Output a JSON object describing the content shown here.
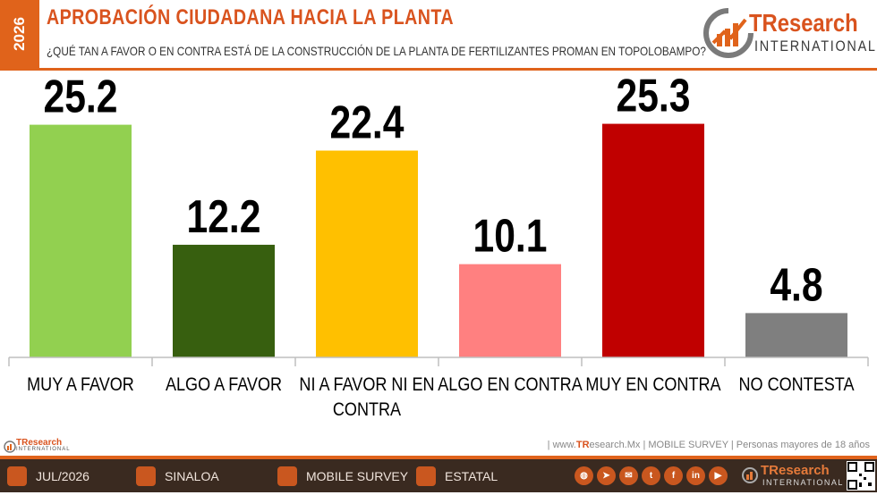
{
  "header": {
    "year": "2026",
    "title": "APROBACIÓN CIUDADANA HACIA LA PLANTA",
    "subtitle": "¿QUÉ TAN A FAVOR O EN CONTRA ESTÁ DE LA CONSTRUCCIÓN DE LA PLANTA DE FERTILIZANTES PROMAN EN TOPOLOBAMPO?",
    "logo_brand": "TResearch",
    "logo_sub": "INTERNATIONAL"
  },
  "chart_data": {
    "type": "bar",
    "categories": [
      "MUY A FAVOR",
      "ALGO A FAVOR",
      "NI A FAVOR NI EN CONTRA",
      "ALGO EN CONTRA",
      "MUY EN CONTRA",
      "NO CONTESTA"
    ],
    "category_lines": [
      [
        "MUY A FAVOR"
      ],
      [
        "ALGO A FAVOR"
      ],
      [
        "NI A FAVOR NI EN",
        "CONTRA"
      ],
      [
        "ALGO EN CONTRA"
      ],
      [
        "MUY EN CONTRA"
      ],
      [
        "NO CONTESTA"
      ]
    ],
    "values": [
      25.2,
      12.2,
      22.4,
      10.1,
      25.3,
      4.8
    ],
    "value_labels": [
      "25.2",
      "12.2",
      "22.4",
      "10.1",
      "25.3",
      "4.8"
    ],
    "colors": [
      "#92d050",
      "#375f0f",
      "#ffc000",
      "#ff8080",
      "#c00000",
      "#7f7f7f"
    ],
    "ylim": [
      0,
      30
    ],
    "grid": false
  },
  "source": {
    "prefix": "| www.",
    "brand": "TR",
    "rest": "esearch.Mx | MOBILE SURVEY | Personas mayores de 18 años"
  },
  "mini_logo": {
    "brand": "TResearch",
    "sub": "INTERNATIONAL"
  },
  "footer": {
    "date": "JUL/2026",
    "location": "SINALOA",
    "method": "MOBILE SURVEY",
    "scope": "ESTATAL",
    "brand": "TResearch",
    "brand_sub": "INTERNATIONAL",
    "social_icons": [
      "globe-icon",
      "telegram-icon",
      "mail-icon",
      "twitter-icon",
      "facebook-icon",
      "linkedin-icon",
      "youtube-icon"
    ]
  }
}
